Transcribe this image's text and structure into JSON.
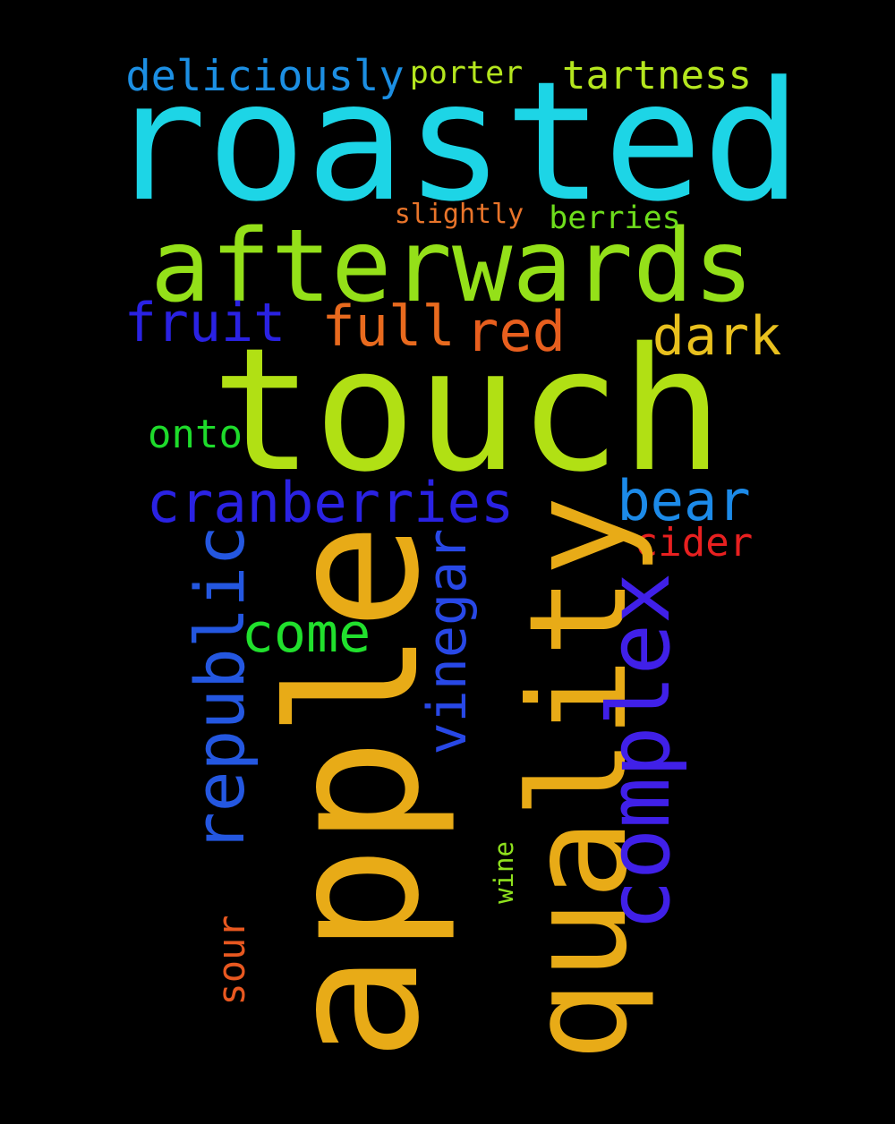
{
  "background": "#000000",
  "words": [
    {
      "text": "roasted",
      "color": "#1DD5E6"
    },
    {
      "text": "touch",
      "color": "#B1E014"
    },
    {
      "text": "afterwards",
      "color": "#94E019"
    },
    {
      "text": "apple",
      "color": "#E8AB17"
    },
    {
      "text": "quality",
      "color": "#E8AB17"
    },
    {
      "text": "complex",
      "color": "#4020E8"
    },
    {
      "text": "cranberries",
      "color": "#2A22E3"
    },
    {
      "text": "republic",
      "color": "#2457E0"
    },
    {
      "text": "vinegar",
      "color": "#2848E6"
    },
    {
      "text": "deliciously",
      "color": "#1C8FE3"
    },
    {
      "text": "porter",
      "color": "#B4E61E"
    },
    {
      "text": "tartness",
      "color": "#B4E61E"
    },
    {
      "text": "slightly",
      "color": "#E8742A"
    },
    {
      "text": "berries",
      "color": "#6EDD1C"
    },
    {
      "text": "fruit",
      "color": "#2A22E3"
    },
    {
      "text": "full",
      "color": "#E86A1E"
    },
    {
      "text": "red",
      "color": "#E85F1E"
    },
    {
      "text": "dark",
      "color": "#E8C01E"
    },
    {
      "text": "onto",
      "color": "#1EDB2B"
    },
    {
      "text": "bear",
      "color": "#1C8AE8"
    },
    {
      "text": "cider",
      "color": "#E82020"
    },
    {
      "text": "come",
      "color": "#21E02D"
    },
    {
      "text": "sour",
      "color": "#E85820"
    },
    {
      "text": "wine",
      "color": "#8FE21E"
    }
  ]
}
